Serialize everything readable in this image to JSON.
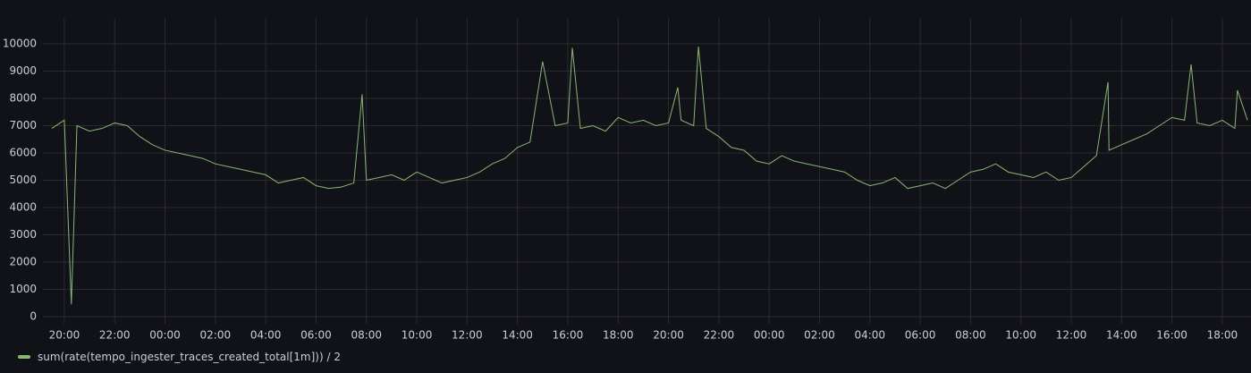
{
  "chart_data": {
    "type": "line",
    "x": [
      19.5,
      20.0,
      20.28,
      20.5,
      21.0,
      21.5,
      22.0,
      22.5,
      23.0,
      23.5,
      24.0,
      24.5,
      25.0,
      25.5,
      26.0,
      26.5,
      27.0,
      27.5,
      28.0,
      28.5,
      29.0,
      29.5,
      30.0,
      30.5,
      31.0,
      31.5,
      31.83,
      32.0,
      32.5,
      33.0,
      33.5,
      34.0,
      34.5,
      35.0,
      35.5,
      36.0,
      36.5,
      37.0,
      37.5,
      38.0,
      38.5,
      39.0,
      39.5,
      40.0,
      40.18,
      40.5,
      41.0,
      41.5,
      42.0,
      42.5,
      43.0,
      43.5,
      44.0,
      44.37,
      44.5,
      45.0,
      45.19,
      45.5,
      46.0,
      46.5,
      47.0,
      47.5,
      48.0,
      48.5,
      49.0,
      49.5,
      50.0,
      50.5,
      51.0,
      51.5,
      52.0,
      52.5,
      53.0,
      53.5,
      54.0,
      54.5,
      55.0,
      55.5,
      56.0,
      56.5,
      57.0,
      57.5,
      58.0,
      58.5,
      59.0,
      59.5,
      60.0,
      60.5,
      61.0,
      61.46,
      61.5,
      62.0,
      62.5,
      63.0,
      63.5,
      64.0,
      64.5,
      64.76,
      65.0,
      65.5,
      66.0,
      66.5,
      66.6,
      67.0
    ],
    "series": [
      {
        "name": "sum(rate(tempo_ingester_traces_created_total[1m])) / 2",
        "color": "#8ab673",
        "values": [
          6900,
          7200,
          450,
          7000,
          6800,
          6900,
          7100,
          7000,
          6600,
          6300,
          6100,
          6000,
          5900,
          5800,
          5600,
          5500,
          5400,
          5300,
          5200,
          4900,
          5000,
          5100,
          4800,
          4700,
          4750,
          4900,
          8150,
          5000,
          5100,
          5200,
          5000,
          5300,
          5100,
          4900,
          5000,
          5100,
          5300,
          5600,
          5800,
          6200,
          6400,
          9350,
          7000,
          7100,
          9850,
          6900,
          7000,
          6800,
          7300,
          7100,
          7200,
          7000,
          7100,
          8400,
          7200,
          7000,
          9900,
          6900,
          6600,
          6200,
          6100,
          5700,
          5600,
          5900,
          5700,
          5600,
          5500,
          5400,
          5300,
          5000,
          4800,
          4900,
          5100,
          4700,
          4800,
          4900,
          4700,
          5000,
          5300,
          5400,
          5600,
          5300,
          5200,
          5100,
          5300,
          5000,
          5100,
          5500,
          5900,
          8600,
          6100,
          6300,
          6500,
          6700,
          7000,
          7300,
          7200,
          9250,
          7100,
          7000,
          7200,
          6900,
          8300,
          7200
        ]
      }
    ],
    "xlim": [
      19.15,
      67.14
    ],
    "xticks": [
      {
        "value": 20,
        "label": "20:00"
      },
      {
        "value": 22,
        "label": "22:00"
      },
      {
        "value": 24,
        "label": "00:00"
      },
      {
        "value": 26,
        "label": "02:00"
      },
      {
        "value": 28,
        "label": "04:00"
      },
      {
        "value": 30,
        "label": "06:00"
      },
      {
        "value": 32,
        "label": "08:00"
      },
      {
        "value": 34,
        "label": "10:00"
      },
      {
        "value": 36,
        "label": "12:00"
      },
      {
        "value": 38,
        "label": "14:00"
      },
      {
        "value": 40,
        "label": "16:00"
      },
      {
        "value": 42,
        "label": "18:00"
      },
      {
        "value": 44,
        "label": "20:00"
      },
      {
        "value": 46,
        "label": "22:00"
      },
      {
        "value": 48,
        "label": "00:00"
      },
      {
        "value": 50,
        "label": "02:00"
      },
      {
        "value": 52,
        "label": "04:00"
      },
      {
        "value": 54,
        "label": "06:00"
      },
      {
        "value": 56,
        "label": "08:00"
      },
      {
        "value": 58,
        "label": "10:00"
      },
      {
        "value": 60,
        "label": "12:00"
      },
      {
        "value": 62,
        "label": "14:00"
      },
      {
        "value": 64,
        "label": "16:00"
      },
      {
        "value": 66,
        "label": "18:00"
      }
    ],
    "ylim": [
      0,
      10000
    ],
    "yticks": [
      0,
      1000,
      2000,
      3000,
      4000,
      5000,
      6000,
      7000,
      8000,
      9000,
      10000
    ],
    "grid": true
  }
}
